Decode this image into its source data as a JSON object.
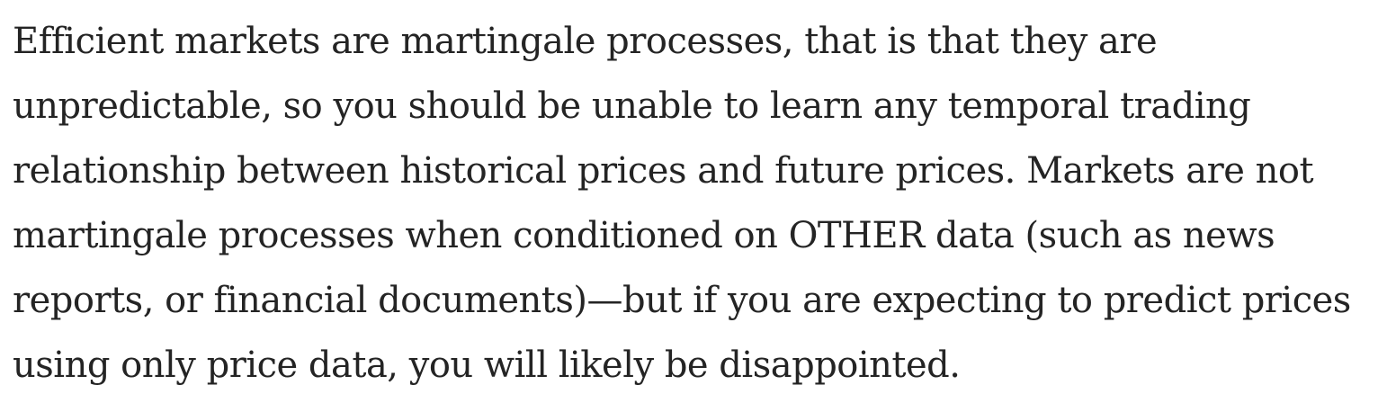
{
  "paragraph": {
    "lines": [
      "Efficient markets are martingale processes, that is that they are",
      "unpredictable, so you should be unable to learn any temporal trading",
      "relationship between historical prices and future prices. Markets are not",
      "martingale processes when conditioned on OTHER data (such as news",
      "reports, or financial documents)—but if you are expecting to predict prices",
      "using only price data, you will likely be disappointed."
    ]
  }
}
